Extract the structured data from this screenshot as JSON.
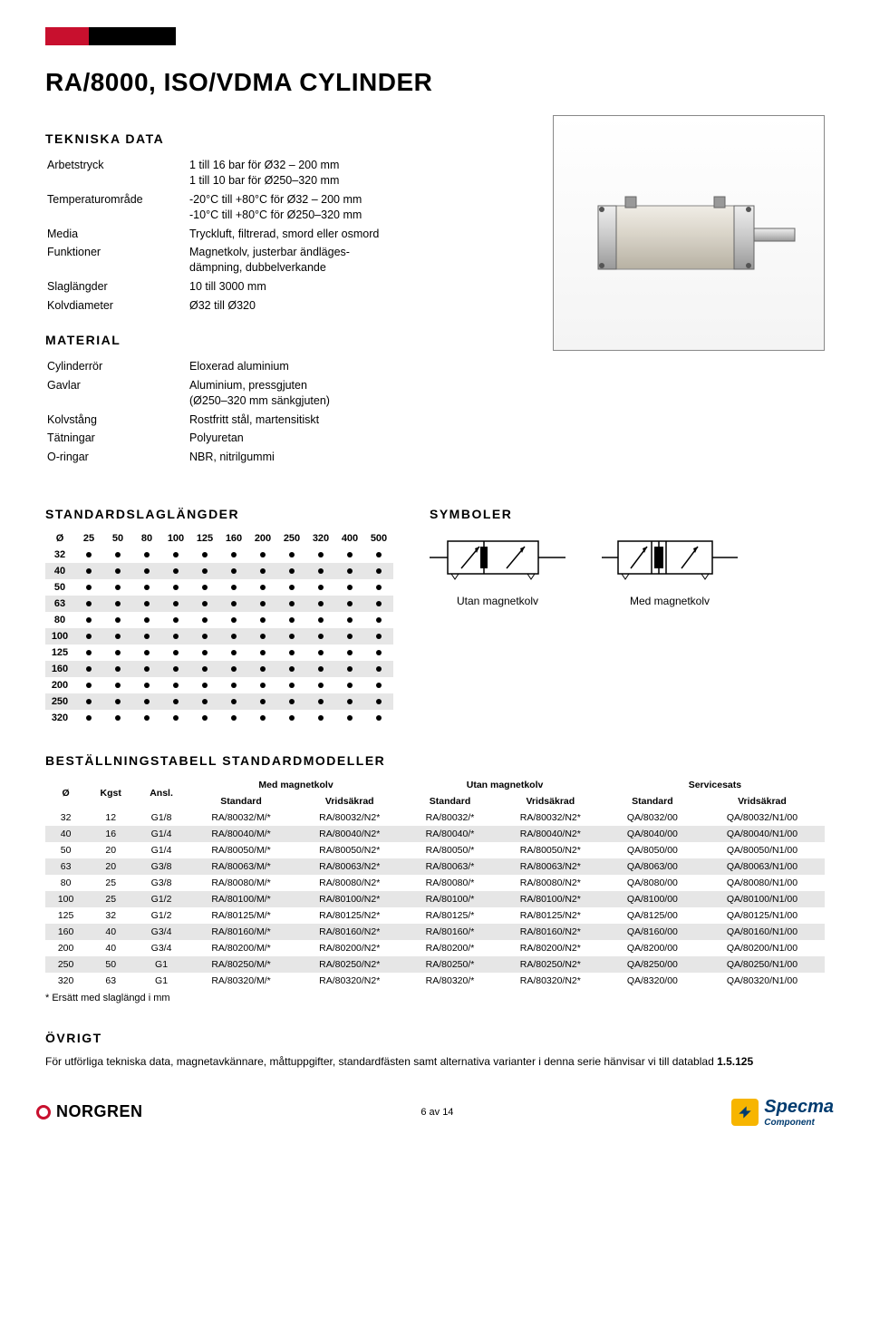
{
  "topbar_colors": [
    "#c8102e",
    "#000000",
    "#000000"
  ],
  "title": "RA/8000, ISO/VDMA CYLINDER",
  "sections": {
    "tekniska": "TEKNISKA DATA",
    "material": "MATERIAL",
    "stdlen": "STANDARDSLAGLÄNGDER",
    "symboler": "SYMBOLER",
    "bestall": "BESTÄLLNINGSTABELL STANDARDMODELLER",
    "ovrigt": "ÖVRIGT"
  },
  "tekniska": [
    {
      "k": "Arbetstryck",
      "v": "1 till 16 bar för Ø32 – 200 mm\n1 till 10 bar för Ø250–320 mm"
    },
    {
      "k": "Temperaturområde",
      "v": "-20°C till +80°C för Ø32 – 200 mm\n-10°C till +80°C för Ø250–320 mm"
    },
    {
      "k": "Media",
      "v": "Tryckluft, filtrerad, smord eller osmord"
    },
    {
      "k": "Funktioner",
      "v": "Magnetkolv, justerbar ändläges-\ndämpning, dubbelverkande"
    },
    {
      "k": "Slaglängder",
      "v": "10 till 3000 mm"
    },
    {
      "k": "Kolvdiameter",
      "v": "Ø32 till Ø320"
    }
  ],
  "material": [
    {
      "k": "Cylinderrör",
      "v": "Eloxerad aluminium"
    },
    {
      "k": "Gavlar",
      "v": "Aluminium, pressgjuten\n(Ø250–320 mm sänkgjuten)"
    },
    {
      "k": "Kolvstång",
      "v": "Rostfritt stål, martensitiskt"
    },
    {
      "k": "Tätningar",
      "v": "Polyuretan"
    },
    {
      "k": "O-ringar",
      "v": "NBR, nitrilgummi"
    }
  ],
  "dot_table": {
    "cols": [
      "Ø",
      "25",
      "50",
      "80",
      "100",
      "125",
      "160",
      "200",
      "250",
      "320",
      "400",
      "500"
    ],
    "rows": [
      "32",
      "40",
      "50",
      "63",
      "80",
      "100",
      "125",
      "160",
      "200",
      "250",
      "320"
    ],
    "band_color": "#e6e6e6"
  },
  "symbols": {
    "utan": "Utan magnetkolv",
    "med": "Med magnetkolv"
  },
  "order_table": {
    "group_headers": [
      "Ø",
      "Kgst",
      "Ansl.",
      "Med magnetkolv",
      "Utan magnetkolv",
      "Servicesats"
    ],
    "sub_headers": [
      "Standard",
      "Vridsäkrad",
      "Standard",
      "Vridsäkrad",
      "Standard",
      "Vridsäkrad"
    ],
    "rows": [
      [
        "32",
        "12",
        "G1/8",
        "RA/80032/M/*",
        "RA/80032/N2*",
        "RA/80032/*",
        "RA/80032/N2*",
        "QA/8032/00",
        "QA/80032/N1/00"
      ],
      [
        "40",
        "16",
        "G1/4",
        "RA/80040/M/*",
        "RA/80040/N2*",
        "RA/80040/*",
        "RA/80040/N2*",
        "QA/8040/00",
        "QA/80040/N1/00"
      ],
      [
        "50",
        "20",
        "G1/4",
        "RA/80050/M/*",
        "RA/80050/N2*",
        "RA/80050/*",
        "RA/80050/N2*",
        "QA/8050/00",
        "QA/80050/N1/00"
      ],
      [
        "63",
        "20",
        "G3/8",
        "RA/80063/M/*",
        "RA/80063/N2*",
        "RA/80063/*",
        "RA/80063/N2*",
        "QA/8063/00",
        "QA/80063/N1/00"
      ],
      [
        "80",
        "25",
        "G3/8",
        "RA/80080/M/*",
        "RA/80080/N2*",
        "RA/80080/*",
        "RA/80080/N2*",
        "QA/8080/00",
        "QA/80080/N1/00"
      ],
      [
        "100",
        "25",
        "G1/2",
        "RA/80100/M/*",
        "RA/80100/N2*",
        "RA/80100/*",
        "RA/80100/N2*",
        "QA/8100/00",
        "QA/80100/N1/00"
      ],
      [
        "125",
        "32",
        "G1/2",
        "RA/80125/M/*",
        "RA/80125/N2*",
        "RA/80125/*",
        "RA/80125/N2*",
        "QA/8125/00",
        "QA/80125/N1/00"
      ],
      [
        "160",
        "40",
        "G3/4",
        "RA/80160/M/*",
        "RA/80160/N2*",
        "RA/80160/*",
        "RA/80160/N2*",
        "QA/8160/00",
        "QA/80160/N1/00"
      ],
      [
        "200",
        "40",
        "G3/4",
        "RA/80200/M/*",
        "RA/80200/N2*",
        "RA/80200/*",
        "RA/80200/N2*",
        "QA/8200/00",
        "QA/80200/N1/00"
      ],
      [
        "250",
        "50",
        "G1",
        "RA/80250/M/*",
        "RA/80250/N2*",
        "RA/80250/*",
        "RA/80250/N2*",
        "QA/8250/00",
        "QA/80250/N1/00"
      ],
      [
        "320",
        "63",
        "G1",
        "RA/80320/M/*",
        "RA/80320/N2*",
        "RA/80320/*",
        "RA/80320/N2*",
        "QA/8320/00",
        "QA/80320/N1/00"
      ]
    ],
    "footnote": "* Ersätt med slaglängd i mm"
  },
  "ovrigt_text": "För utförliga tekniska data, magnetavkännare, måttuppgifter, standardfästen samt alternativa varianter i denna serie hänvisar vi till datablad 1.5.125",
  "footer": {
    "norgren": "NORGREN",
    "page": "6 av 14",
    "specma": "Specma",
    "specma_sub": "Component"
  },
  "colors": {
    "accent": "#c8102e",
    "band": "#e6e6e6",
    "specma_blue": "#003b6f",
    "specma_yellow": "#f7b500"
  }
}
